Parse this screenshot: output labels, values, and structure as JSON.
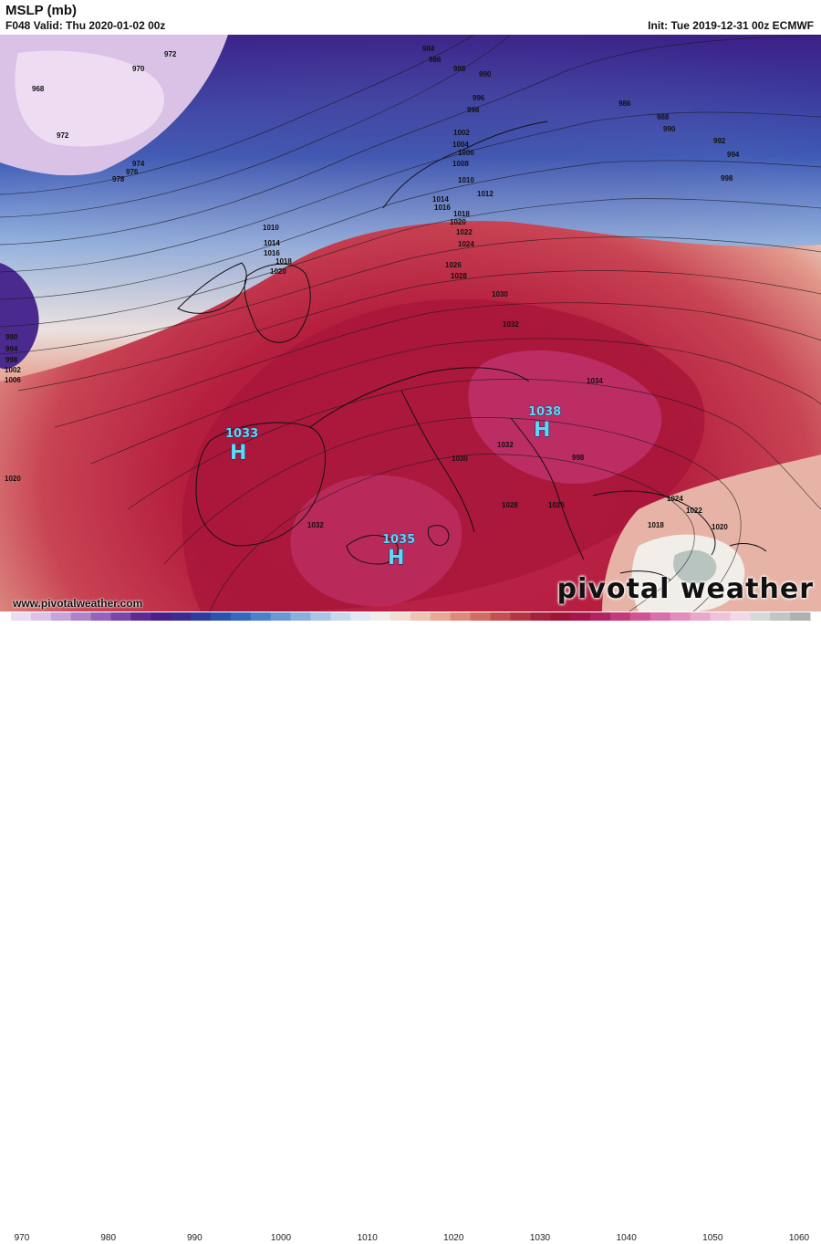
{
  "header": {
    "title": "MSLP (mb)",
    "valid": "F048 Valid: Thu 2020-01-02 00z",
    "init": "Init: Tue 2019-12-31 00z ECMWF"
  },
  "footer": {
    "website": "www.pivotalweather.com",
    "brand": "pivotal weather"
  },
  "pressure_centers": [
    {
      "type": "H",
      "value": "1033",
      "region": "iberia"
    },
    {
      "type": "H",
      "value": "1038",
      "region": "balkans"
    },
    {
      "type": "H",
      "value": "1035",
      "region": "mediterranean"
    }
  ],
  "isobar_labels": [
    "972",
    "970",
    "968",
    "972",
    "974",
    "976",
    "978",
    "984",
    "986",
    "988",
    "990",
    "996",
    "998",
    "1002",
    "1004",
    "1006",
    "1008",
    "1010",
    "1012",
    "1014",
    "1016",
    "1018",
    "1020",
    "1022",
    "1024",
    "1026",
    "1028",
    "986",
    "988",
    "990",
    "992",
    "994",
    "998",
    "1010",
    "1014",
    "1016",
    "1018",
    "1020",
    "990",
    "994",
    "998",
    "1002",
    "1006",
    "1030",
    "1032",
    "1034",
    "1030",
    "1032",
    "1026",
    "1028",
    "1024",
    "1022",
    "1020",
    "1018",
    "1032",
    "1020"
  ],
  "legend": {
    "ticks": [
      "970",
      "980",
      "990",
      "1000",
      "1010",
      "1020",
      "1030",
      "1040",
      "1050",
      "1060"
    ],
    "colors": [
      "#ecdcf2",
      "#dcc2e8",
      "#c7a3db",
      "#ad84cc",
      "#9464bd",
      "#7a46aa",
      "#5e2b96",
      "#4a1f88",
      "#3c2a8e",
      "#2f3c9e",
      "#2a52b0",
      "#3468c1",
      "#4a80cc",
      "#6a98d6",
      "#8aafdf",
      "#aac5e8",
      "#c8d8ef",
      "#e2e9f3",
      "#efeee9",
      "#f1ddd2",
      "#eec4b4",
      "#e7a896",
      "#dd8a7a",
      "#d06c62",
      "#c34f50",
      "#b53544",
      "#a8203c",
      "#9e1536",
      "#a8154a",
      "#b52262",
      "#c33a7a",
      "#cf5592",
      "#d970a7",
      "#e28cbb",
      "#e9a8cb",
      "#efc2da",
      "#f3d8e6",
      "#d8d8d8",
      "#c4c4c4",
      "#b0b0b0"
    ]
  }
}
